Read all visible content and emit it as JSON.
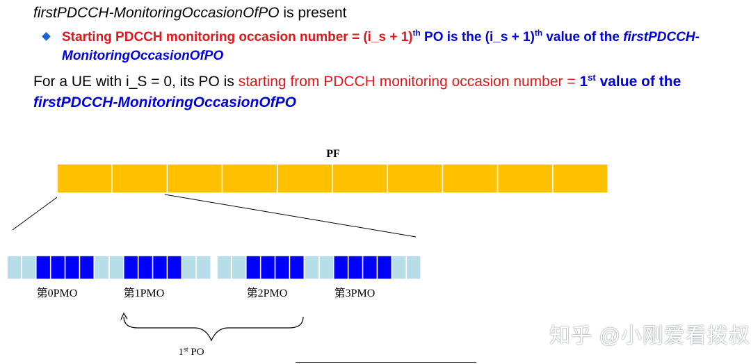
{
  "header": {
    "param_name": "firstPDCCH-MonitoringOccasionOfPO",
    "is_present": " is present"
  },
  "bullet": {
    "red_text": "Starting PDCCH monitoring occasion number = (i_s + 1)",
    "sup1": "th",
    "mid": " PO is the (i_s + 1)",
    "sup2": "th",
    "after": " value of the ",
    "param_name": "firstPDCCH-MonitoringOccasionOfPO"
  },
  "paragraph": {
    "prefix": "For a UE with i_S = 0, its PO is ",
    "red_text": "starting from PDCCH monitoring occasion number = ",
    "first": "1",
    "first_sup": "st",
    "value_of_the": " value of the",
    "param_name": "firstPDCCH-MonitoringOccasionOfPO"
  },
  "diagram": {
    "pf_label": "PF",
    "pf_slot_count": 10,
    "pmo_labels": [
      "第0PMO",
      "第1PMO",
      "第2PMO",
      "第3PMO"
    ],
    "po_label": "1",
    "po_label_sup": "st",
    "po_label_suffix": " PO",
    "colors": {
      "pf_fill": "#ffc000",
      "slot_light": "#b7dde8",
      "slot_dark": "#0000ff",
      "bullet": "#1e63d6",
      "red": "#e0161c",
      "blue": "#0000d8"
    }
  },
  "watermark": "知乎 @小刚爱看拨叔"
}
